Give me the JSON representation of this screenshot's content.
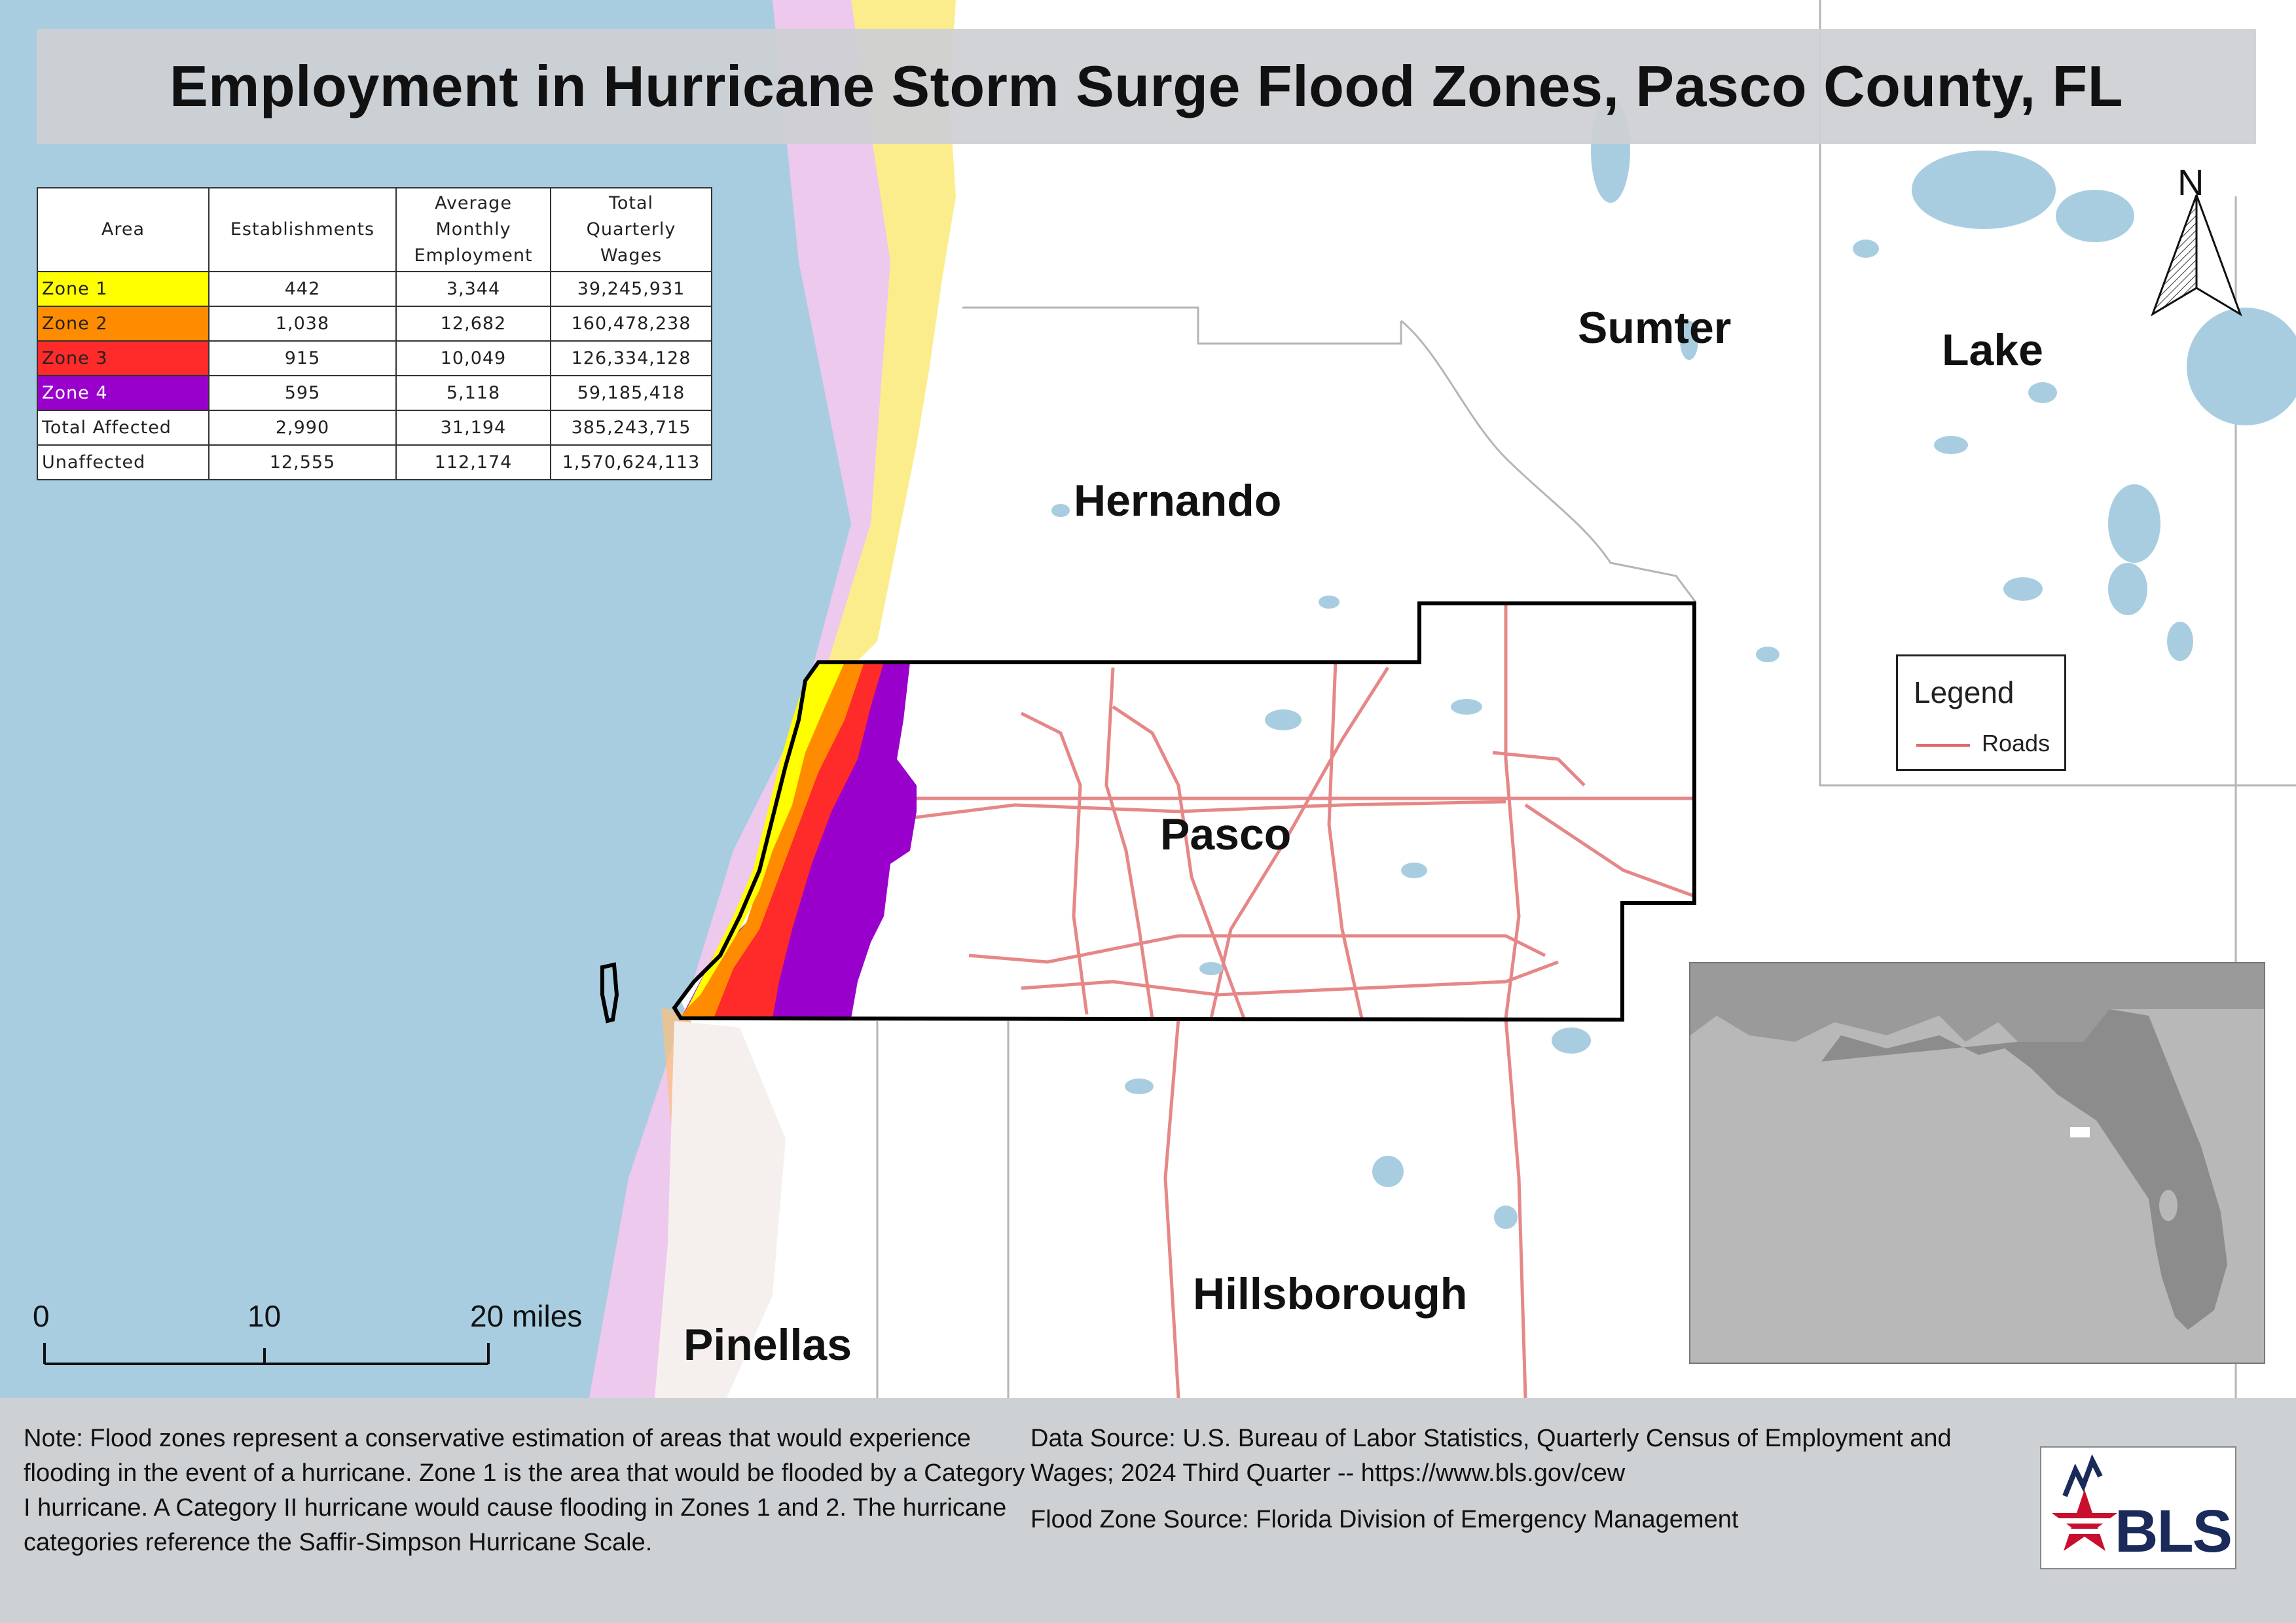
{
  "title": "Employment in Hurricane Storm Surge Flood Zones, Pasco County, FL",
  "table": {
    "headers": {
      "area": "Area",
      "establishments": "Establishments",
      "employment_lines": [
        "Average",
        "Monthly",
        "Employment"
      ],
      "wages_lines": [
        "Total",
        "Quarterly",
        "Wages"
      ]
    },
    "rows": [
      {
        "area": "Zone 1",
        "establishments": "442",
        "employment": "3,344",
        "wages": "39,245,931",
        "color": "#ffff00",
        "text_color": "#222222"
      },
      {
        "area": "Zone 2",
        "establishments": "1,038",
        "employment": "12,682",
        "wages": "160,478,238",
        "color": "#ff8c00",
        "text_color": "#222222"
      },
      {
        "area": "Zone 3",
        "establishments": "915",
        "employment": "10,049",
        "wages": "126,334,128",
        "color": "#ff2a2a",
        "text_color": "#222222"
      },
      {
        "area": "Zone 4",
        "establishments": "595",
        "employment": "5,118",
        "wages": "59,185,418",
        "color": "#9900cc",
        "text_color": "#ffffff"
      },
      {
        "area": "Total Affected",
        "establishments": "2,990",
        "employment": "31,194",
        "wages": "385,243,715",
        "color": "#ffffff",
        "text_color": "#222222"
      },
      {
        "area": "Unaffected",
        "establishments": "12,555",
        "employment": "112,174",
        "wages": "1,570,624,113",
        "color": "#ffffff",
        "text_color": "#222222"
      }
    ]
  },
  "counties": {
    "sumter": "Sumter",
    "lake": "Lake",
    "hernando": "Hernando",
    "pasco": "Pasco",
    "hillsborough": "Hillsborough",
    "pinellas": "Pinellas"
  },
  "legend": {
    "title": "Legend",
    "roads_label": "Roads",
    "roads_color": "#e06a6a"
  },
  "north_label": "N",
  "scale_bar": {
    "labels": [
      "0",
      "10",
      "20 miles"
    ]
  },
  "footer": {
    "note": "Note: Flood zones represent a conservative estimation of areas that would experience flooding in the event of a hurricane. Zone 1 is the area that would be flooded by a Category I hurricane. A Category II hurricane would cause flooding in Zones 1 and 2. The hurricane categories reference the Saffir-Simpson Hurricane Scale.",
    "data_source": "Data Source: U.S. Bureau of Labor Statistics, Quarterly Census of Employment and Wages; 2024 Third Quarter -- https://www.bls.gov/cew",
    "flood_source": "Flood Zone Source: Florida Division of Emergency Management"
  },
  "logo": {
    "text": "BLS"
  },
  "colors": {
    "water": "#a9cde0",
    "land": "#ffffff",
    "zone1": "#ffff00",
    "zone2": "#ff8c00",
    "zone3": "#ff2a2a",
    "zone4": "#9900cc",
    "coastal_flood_pale": "#f3c9ee",
    "inset_land": "#b8b8b8",
    "inset_state": "#8c8c8c"
  }
}
